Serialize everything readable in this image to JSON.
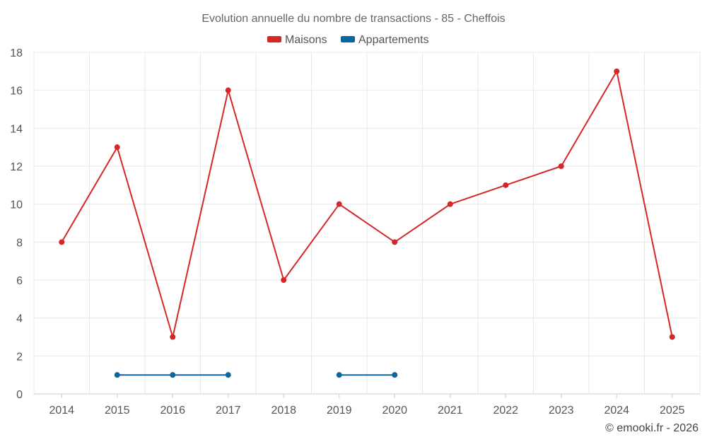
{
  "chart_data": {
    "type": "line",
    "title": "Evolution annuelle du nombre de transactions - 85 - Cheffois",
    "categories": [
      "2014",
      "2015",
      "2016",
      "2017",
      "2018",
      "2019",
      "2020",
      "2021",
      "2022",
      "2023",
      "2024",
      "2025"
    ],
    "yticks": [
      "0",
      "2",
      "4",
      "6",
      "8",
      "10",
      "12",
      "14",
      "16",
      "18"
    ],
    "ylim": [
      0,
      18
    ],
    "grid": true,
    "legend_position": "top-center",
    "series": [
      {
        "name": "Maisons",
        "color": "#d62728",
        "values": [
          8,
          13,
          3,
          16,
          6,
          10,
          8,
          10,
          11,
          12,
          17,
          3
        ]
      },
      {
        "name": "Appartements",
        "color": "#0a66a0",
        "values": [
          null,
          1,
          1,
          1,
          null,
          1,
          1,
          null,
          null,
          null,
          null,
          null
        ]
      }
    ]
  },
  "credit": "© emooki.fr - 2026"
}
